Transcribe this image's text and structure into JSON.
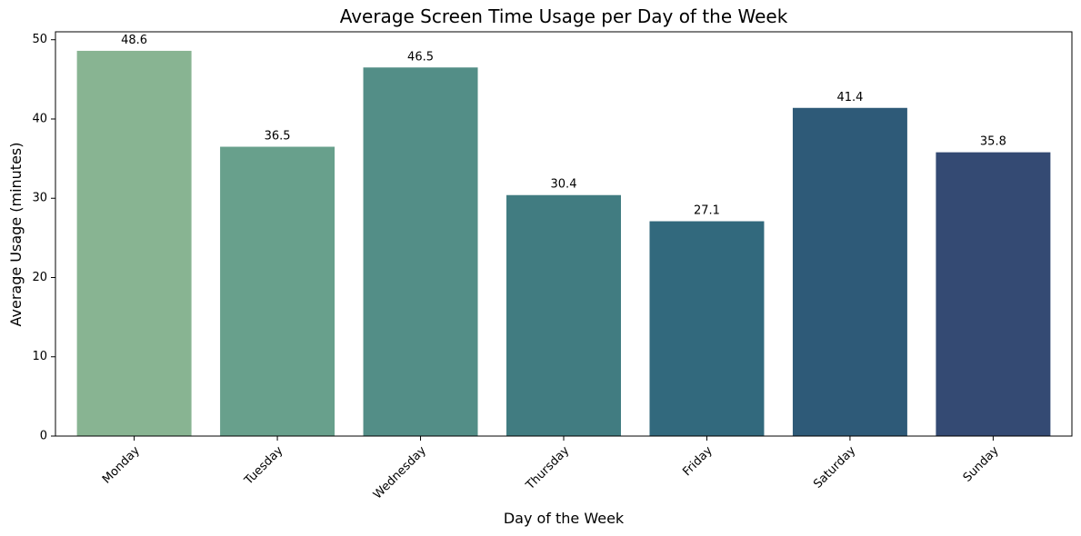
{
  "chart_data": {
    "type": "bar",
    "title": "Average Screen Time Usage per Day of the Week",
    "xlabel": "Day of the Week",
    "ylabel": "Average Usage (minutes)",
    "categories": [
      "Monday",
      "Tuesday",
      "Wednesday",
      "Thursday",
      "Friday",
      "Saturday",
      "Sunday"
    ],
    "values": [
      48.6,
      36.5,
      46.5,
      30.4,
      27.1,
      41.4,
      35.8
    ],
    "value_labels": [
      "48.6",
      "36.5",
      "46.5",
      "30.4",
      "27.1",
      "41.4",
      "35.8"
    ],
    "ylim": [
      0,
      51
    ],
    "yticks": [
      0,
      10,
      20,
      30,
      40,
      50
    ],
    "grid": false,
    "legend": "none",
    "colors": [
      "#88b492",
      "#68a08c",
      "#538e87",
      "#417c81",
      "#32697d",
      "#2e5a78",
      "#344a73"
    ]
  }
}
